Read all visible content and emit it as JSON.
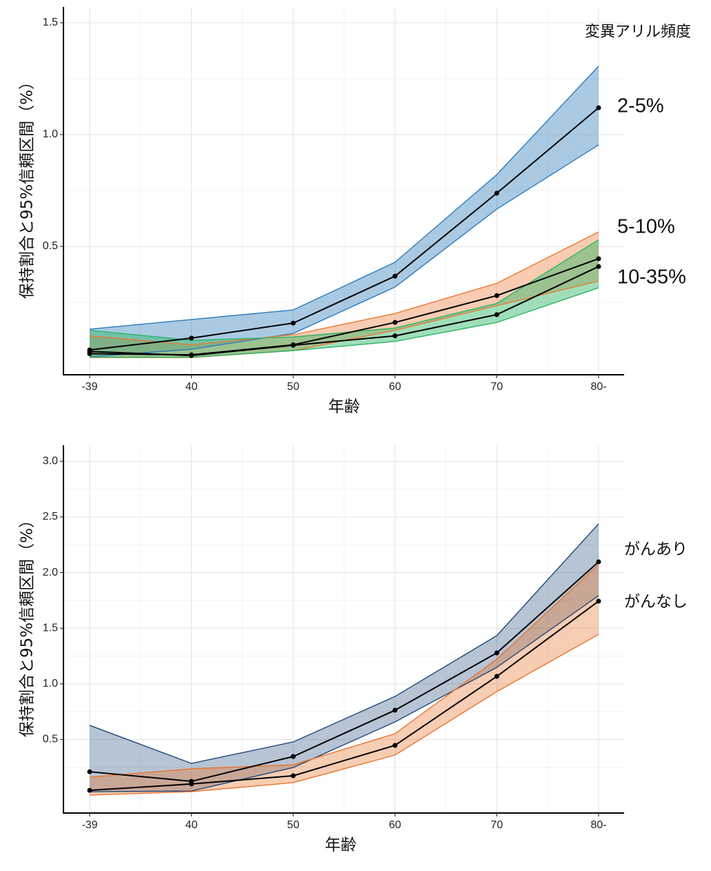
{
  "chart_data": [
    {
      "type": "line",
      "xlabel": "年齢",
      "ylabel": "保持割合と95%信頼区間（%）",
      "legend_title": "変異アリル頻度",
      "legend_position": "right",
      "grid": true,
      "categories": [
        "-39",
        "40",
        "50",
        "60",
        "70",
        "80-"
      ],
      "ylim": [
        -0.074,
        1.571
      ],
      "yticks": [
        {
          "value": 0.5,
          "label": "0.5"
        },
        {
          "value": 1.0,
          "label": "1.0"
        },
        {
          "value": 1.5,
          "label": "1.5"
        }
      ],
      "series": [
        {
          "name": "2-5%",
          "color": "#2b7bba",
          "values": [
            0.037,
            0.09,
            0.157,
            0.367,
            0.738,
            1.12
          ],
          "lower": [
            0.006,
            0.04,
            0.111,
            0.318,
            0.667,
            0.954
          ],
          "upper": [
            0.13,
            0.173,
            0.216,
            0.429,
            0.821,
            1.306
          ]
        },
        {
          "name": "5-10%",
          "color": "#ec7a34",
          "values": [
            0.02,
            0.015,
            0.06,
            0.16,
            0.28,
            0.445
          ],
          "lower": [
            0.003,
            0.003,
            0.034,
            0.125,
            0.235,
            0.345
          ],
          "upper": [
            0.1,
            0.06,
            0.105,
            0.2,
            0.335,
            0.565
          ]
        },
        {
          "name": "10-35%",
          "color": "#2db566",
          "values": [
            0.03,
            0.012,
            0.058,
            0.1,
            0.195,
            0.41
          ],
          "lower": [
            0.005,
            0.004,
            0.034,
            0.075,
            0.16,
            0.315
          ],
          "upper": [
            0.125,
            0.08,
            0.095,
            0.135,
            0.245,
            0.53
          ]
        }
      ]
    },
    {
      "type": "line",
      "xlabel": "年齢",
      "ylabel": "保持割合と95%信頼区間（%）",
      "legend_position": "right",
      "grid": true,
      "categories": [
        "-39",
        "40",
        "50",
        "60",
        "70",
        "80-"
      ],
      "ylim": [
        -0.161,
        3.145
      ],
      "yticks": [
        {
          "value": 0.5,
          "label": "0.5"
        },
        {
          "value": 1.0,
          "label": "1.0"
        },
        {
          "value": 1.5,
          "label": "1.5"
        },
        {
          "value": 2.0,
          "label": "2.0"
        },
        {
          "value": 2.5,
          "label": "2.5"
        },
        {
          "value": 3.0,
          "label": "3.0"
        }
      ],
      "series": [
        {
          "name": "がんあり",
          "color": "#1f4878",
          "values": [
            0.21,
            0.124,
            0.347,
            0.763,
            1.278,
            2.097
          ],
          "lower": [
            0.03,
            0.037,
            0.248,
            0.658,
            1.148,
            1.793
          ],
          "upper": [
            0.627,
            0.285,
            0.478,
            0.887,
            1.433,
            2.438
          ]
        },
        {
          "name": "がんなし",
          "color": "#e8742c",
          "values": [
            0.043,
            0.1,
            0.174,
            0.447,
            1.067,
            1.743
          ],
          "lower": [
            0.0,
            0.031,
            0.112,
            0.36,
            0.93,
            1.445
          ],
          "upper": [
            0.161,
            0.236,
            0.273,
            0.552,
            1.222,
            2.072
          ]
        }
      ]
    }
  ]
}
